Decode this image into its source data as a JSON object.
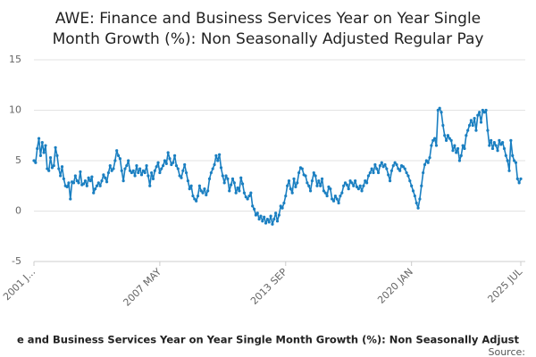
{
  "chart_data": {
    "type": "line",
    "title": [
      "AWE: Finance and Business Services Year on Year Single",
      "Month Growth (%): Non Seasonally Adjusted Regular Pay"
    ],
    "caption": "e and Business Services Year on Year Single Month Growth (%): Non Seasonally Adjust",
    "source": "Source:",
    "categories": [
      "2001 J...",
      null,
      null,
      null,
      null,
      null,
      null,
      null,
      null,
      null,
      null,
      null,
      null,
      null,
      null,
      null,
      null,
      null,
      null,
      null,
      null,
      null,
      null,
      null,
      null,
      null,
      null,
      null,
      null,
      null,
      null,
      null,
      null,
      null,
      null,
      null,
      null,
      null,
      null,
      null,
      null,
      null,
      null,
      null,
      null,
      null,
      null,
      null,
      null,
      null,
      null,
      null,
      null,
      null,
      null,
      null,
      null,
      null,
      null,
      null,
      null,
      null,
      null,
      null,
      null,
      null,
      null,
      null,
      null,
      null,
      null,
      null,
      null,
      null,
      null,
      null,
      "2007 MAY",
      null,
      null,
      null,
      null,
      null,
      null,
      null,
      null,
      null,
      null,
      null,
      null,
      null,
      null,
      null,
      null,
      null,
      null,
      null,
      null,
      null,
      null,
      null,
      null,
      null,
      null,
      null,
      null,
      null,
      null,
      null,
      null,
      null,
      null,
      null,
      null,
      null,
      null,
      null,
      null,
      null,
      null,
      null,
      null,
      null,
      null,
      null,
      null,
      null,
      null,
      null,
      null,
      null,
      null,
      null,
      null,
      null,
      null,
      null,
      null,
      null,
      null,
      null,
      null,
      null,
      null,
      null,
      null,
      null,
      null,
      null,
      null,
      null,
      null,
      null,
      "2013 SEP",
      null,
      null,
      null,
      null,
      null,
      null,
      null,
      null,
      null,
      null,
      null,
      null,
      null,
      null,
      null,
      null,
      null,
      null,
      null,
      null,
      null,
      null,
      null,
      null,
      null,
      null,
      null,
      null,
      null,
      null,
      null,
      null,
      null,
      null,
      null,
      null,
      null,
      null,
      null,
      null,
      null,
      null,
      null,
      null,
      null,
      null,
      null,
      null,
      null,
      null,
      null,
      null,
      null,
      null,
      null,
      null,
      null,
      null,
      null,
      null,
      null,
      null,
      null,
      null,
      null,
      null,
      null,
      null,
      null,
      null,
      null,
      null,
      null,
      null,
      null,
      "2020 JAN",
      null,
      null,
      null,
      null,
      null,
      null,
      null,
      null,
      null,
      null,
      null,
      null,
      null,
      null,
      null,
      null,
      null,
      null,
      null,
      null,
      null,
      null,
      null,
      null,
      null,
      null,
      null,
      null,
      null,
      null,
      null,
      null,
      null,
      null,
      null,
      null,
      null,
      null,
      null,
      null,
      null,
      null,
      null,
      null,
      null,
      null,
      null,
      null,
      null,
      null,
      null,
      null,
      null,
      null,
      null,
      null,
      null,
      null,
      null,
      null,
      null,
      null,
      null,
      null,
      null,
      "2025 JUL"
    ],
    "series": [
      {
        "name": "AWE: Finance and Business Services Year on Year Single Month Growth (%): Non Seasonally Adjusted Regular Pay",
        "color": "#1a7fc1",
        "values": [
          5.0,
          4.8,
          6.2,
          7.2,
          5.5,
          6.8,
          5.8,
          6.5,
          4.2,
          4.0,
          5.3,
          4.3,
          4.5,
          6.3,
          5.5,
          4.2,
          3.5,
          4.4,
          3.2,
          2.5,
          2.4,
          2.8,
          1.2,
          2.9,
          2.8,
          3.5,
          3.0,
          2.8,
          3.9,
          2.6,
          2.7,
          3.0,
          2.5,
          3.3,
          3.0,
          3.4,
          1.8,
          2.2,
          2.5,
          2.8,
          2.5,
          3.0,
          3.6,
          3.3,
          2.9,
          3.8,
          4.5,
          4.0,
          4.2,
          5.0,
          6.0,
          5.5,
          5.2,
          4.0,
          3.0,
          4.2,
          4.5,
          5.0,
          4.0,
          3.8,
          4.0,
          3.5,
          4.5,
          3.8,
          4.2,
          3.6,
          4.0,
          3.8,
          4.5,
          3.5,
          2.5,
          3.8,
          3.2,
          4.0,
          4.4,
          4.8,
          3.8,
          4.2,
          4.5,
          5.0,
          4.7,
          5.8,
          5.2,
          4.6,
          4.8,
          5.5,
          4.5,
          4.2,
          3.5,
          3.3,
          4.0,
          4.6,
          3.8,
          3.0,
          2.2,
          2.5,
          1.5,
          1.2,
          1.0,
          1.5,
          2.5,
          2.0,
          1.8,
          2.2,
          1.6,
          2.0,
          3.2,
          3.8,
          4.2,
          4.6,
          5.5,
          5.0,
          5.6,
          4.3,
          3.5,
          2.8,
          3.5,
          3.2,
          2.0,
          2.6,
          3.2,
          2.8,
          1.8,
          2.3,
          2.0,
          3.3,
          2.7,
          1.8,
          1.4,
          1.2,
          1.5,
          1.8,
          0.5,
          0.2,
          -0.4,
          -0.2,
          -0.8,
          -0.5,
          -1.0,
          -0.6,
          -1.2,
          -0.8,
          -1.1,
          -0.5,
          -1.3,
          -0.8,
          -0.2,
          -1.0,
          -0.4,
          0.5,
          0.3,
          0.8,
          1.5,
          2.5,
          3.0,
          2.2,
          1.8,
          3.2,
          2.4,
          2.8,
          3.8,
          4.3,
          4.2,
          3.6,
          3.5,
          2.8,
          2.5,
          2.0,
          3.0,
          3.8,
          3.5,
          2.5,
          3.0,
          2.5,
          3.2,
          2.0,
          1.8,
          1.5,
          2.4,
          2.2,
          1.2,
          1.0,
          1.5,
          1.2,
          0.8,
          1.5,
          1.8,
          2.5,
          2.8,
          2.6,
          2.2,
          3.0,
          2.8,
          2.5,
          3.0,
          2.4,
          2.2,
          2.5,
          2.0,
          2.5,
          3.0,
          2.8,
          3.5,
          3.8,
          4.2,
          3.8,
          4.6,
          4.2,
          3.8,
          4.5,
          4.8,
          4.4,
          4.6,
          4.2,
          3.6,
          3.0,
          4.0,
          4.5,
          4.8,
          4.6,
          4.2,
          4.0,
          4.5,
          4.4,
          4.2,
          3.8,
          3.5,
          3.0,
          2.5,
          2.0,
          1.5,
          0.8,
          0.3,
          1.2,
          2.5,
          3.8,
          4.6,
          5.0,
          4.8,
          5.3,
          6.5,
          7.0,
          7.2,
          6.5,
          10.0,
          10.2,
          9.8,
          8.5,
          7.5,
          7.0,
          7.5,
          7.2,
          7.0,
          6.0,
          6.5,
          5.8,
          6.2,
          5.0,
          5.5,
          6.5,
          6.2,
          7.5,
          8.0,
          8.5,
          9.0,
          8.5,
          9.2,
          8.0,
          9.5,
          9.8,
          8.8,
          10.0,
          9.8,
          10.0,
          8.0,
          6.5,
          7.0,
          6.2,
          6.8,
          6.5,
          6.0,
          7.0,
          6.6,
          6.8,
          6.2,
          5.5,
          5.0,
          4.0,
          7.0,
          5.5,
          5.0,
          4.8,
          3.2,
          2.8,
          3.2
        ]
      }
    ],
    "ylim": [
      -5,
      15
    ],
    "yticks": [
      -5,
      0,
      5,
      10,
      15
    ],
    "grid": true
  }
}
